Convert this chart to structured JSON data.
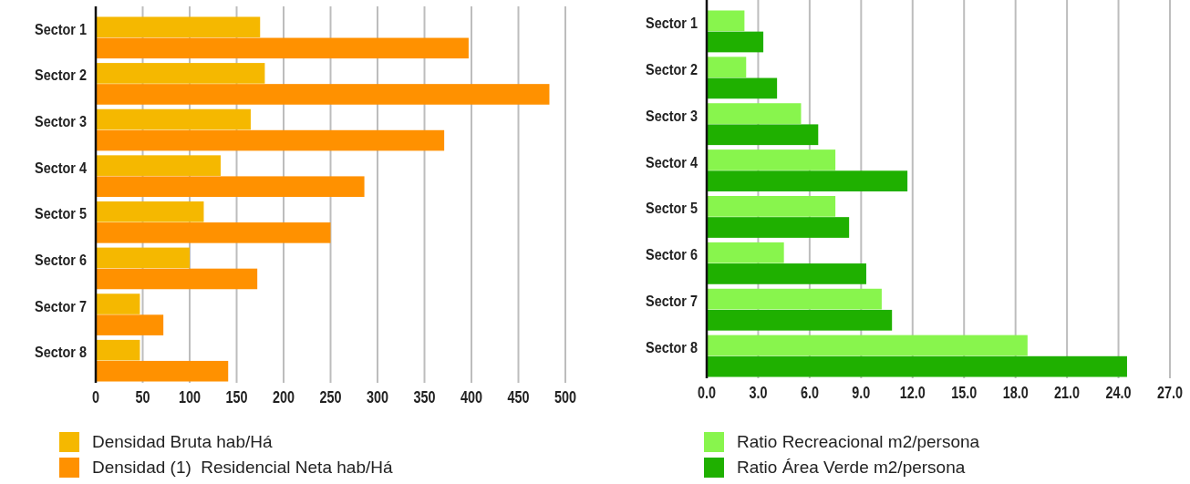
{
  "chart_data": [
    {
      "type": "bar",
      "orientation": "horizontal",
      "categories": [
        "Sector 1",
        "Sector 2",
        "Sector 3",
        "Sector 4",
        "Sector 5",
        "Sector 6",
        "Sector 7",
        "Sector 8"
      ],
      "series": [
        {
          "name": "Densidad Bruta hab/Há",
          "color": "#f5b800",
          "values": [
            175,
            180,
            165,
            133,
            115,
            100,
            47,
            47
          ]
        },
        {
          "name": "Densidad (1)  Residencial Neta hab/Há",
          "color": "#ff9100",
          "values": [
            397,
            483,
            371,
            286,
            250,
            172,
            72,
            141
          ]
        }
      ],
      "xlim": [
        0,
        500
      ],
      "xticks": [
        0,
        50,
        100,
        150,
        200,
        250,
        300,
        350,
        400,
        450,
        500
      ],
      "grid": "x",
      "legend": "bottom"
    },
    {
      "type": "bar",
      "orientation": "horizontal",
      "categories": [
        "Sector 1",
        "Sector 2",
        "Sector 3",
        "Sector 4",
        "Sector 5",
        "Sector 6",
        "Sector 7",
        "Sector 8"
      ],
      "series": [
        {
          "name": "Ratio Recreacional m2/persona",
          "color": "#88f54d",
          "values": [
            2.2,
            2.3,
            5.5,
            7.5,
            7.5,
            4.5,
            10.2,
            18.7
          ]
        },
        {
          "name": "Ratio Área Verde m2/persona",
          "color": "#1fb000",
          "values": [
            3.3,
            4.1,
            6.5,
            11.7,
            8.3,
            9.3,
            10.8,
            24.5
          ]
        }
      ],
      "xlim": [
        0,
        27
      ],
      "xticks": [
        {
          "value": 0,
          "label": "0.0"
        },
        {
          "value": 3,
          "label": "3.0"
        },
        {
          "value": 6,
          "label": "6.0"
        },
        {
          "value": 9,
          "label": "9.0"
        },
        {
          "value": 12,
          "label": "12.0"
        },
        {
          "value": 15,
          "label": "15.0"
        },
        {
          "value": 18,
          "label": "18.0"
        },
        {
          "value": 21,
          "label": "21.0"
        },
        {
          "value": 24,
          "label": "24.0"
        },
        {
          "value": 27,
          "label": "27.0"
        }
      ],
      "grid": "x",
      "legend": "bottom"
    }
  ]
}
